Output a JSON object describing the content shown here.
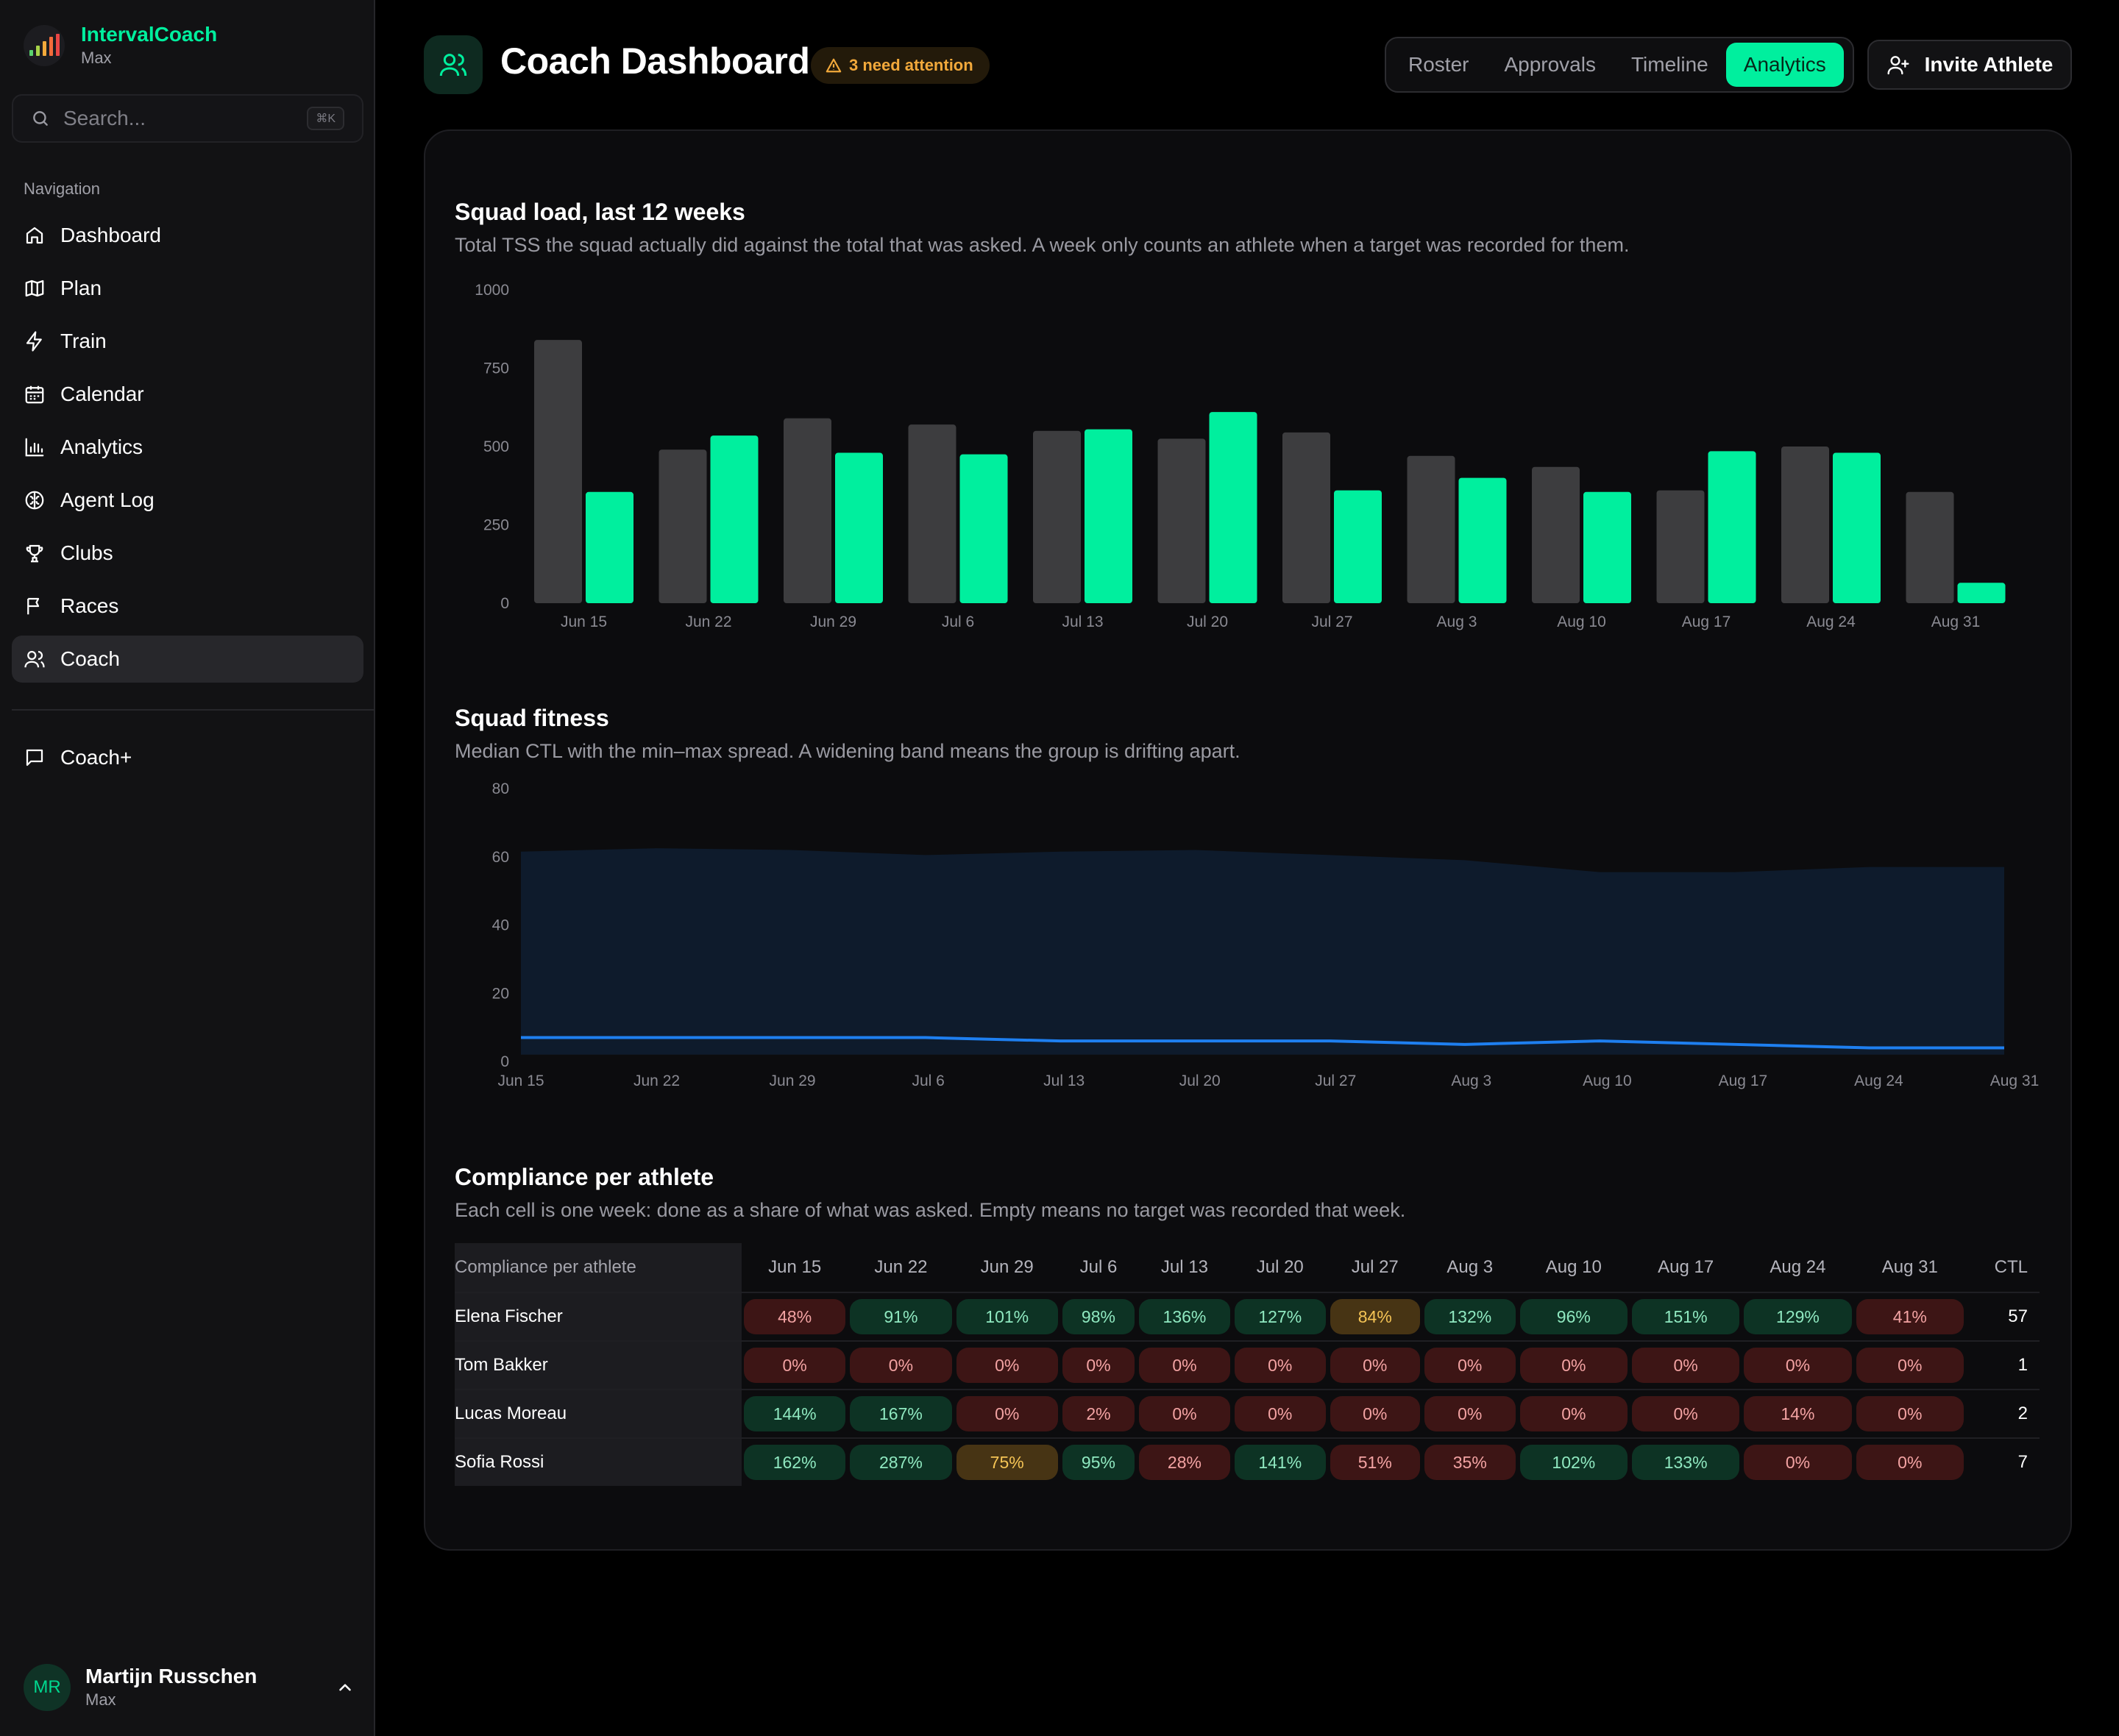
{
  "brand": {
    "name": "IntervalCoach",
    "sub": "Max"
  },
  "search": {
    "placeholder": "Search...",
    "shortcut": "⌘K"
  },
  "nav": {
    "label": "Navigation",
    "items": [
      {
        "label": "Dashboard",
        "icon": "home-icon"
      },
      {
        "label": "Plan",
        "icon": "map-icon"
      },
      {
        "label": "Train",
        "icon": "bolt-icon"
      },
      {
        "label": "Calendar",
        "icon": "calendar-icon"
      },
      {
        "label": "Analytics",
        "icon": "bar-chart-icon"
      },
      {
        "label": "Agent Log",
        "icon": "brain-icon"
      },
      {
        "label": "Clubs",
        "icon": "trophy-icon"
      },
      {
        "label": "Races",
        "icon": "flag-icon"
      },
      {
        "label": "Coach",
        "icon": "users-icon",
        "active": true
      }
    ],
    "extra": {
      "label": "Coach+",
      "icon": "message-icon"
    }
  },
  "user": {
    "initials": "MR",
    "name": "Martijn Russchen",
    "sub": "Max"
  },
  "header": {
    "title": "Coach Dashboard",
    "attention": "3 need attention",
    "tabs": [
      "Roster",
      "Approvals",
      "Timeline",
      "Analytics"
    ],
    "active_tab": "Analytics",
    "invite_label": "Invite Athlete"
  },
  "colors": {
    "accent": "#00ef9e",
    "asked": "#3d3d3f",
    "median": "#1e7ff0",
    "band": "#0e1b2c"
  },
  "load": {
    "title": "Squad load, last 12 weeks",
    "description": "Total TSS the squad actually did against the total that was asked. A week only counts an athlete when a target was recorded for them."
  },
  "fitness": {
    "title": "Squad fitness",
    "description": "Median CTL with the min–max spread. A widening band means the group is drifting apart."
  },
  "compliance": {
    "title": "Compliance per athlete",
    "description": "Each cell is one week: done as a share of what was asked. Empty means no target was recorded that week.",
    "header_label": "Compliance per athlete",
    "ctl_label": "CTL",
    "weeks": [
      "Jun 15",
      "Jun 22",
      "Jun 29",
      "Jul 6",
      "Jul 13",
      "Jul 20",
      "Jul 27",
      "Aug 3",
      "Aug 10",
      "Aug 17",
      "Aug 24",
      "Aug 31"
    ],
    "rows": [
      {
        "name": "Elena Fischer",
        "values": [
          "48%",
          "91%",
          "101%",
          "98%",
          "136%",
          "127%",
          "84%",
          "132%",
          "96%",
          "151%",
          "129%",
          "41%"
        ],
        "status": [
          "r",
          "g",
          "g",
          "g",
          "g",
          "g",
          "a",
          "g",
          "g",
          "g",
          "g",
          "r"
        ],
        "ctl": "57"
      },
      {
        "name": "Tom Bakker",
        "values": [
          "0%",
          "0%",
          "0%",
          "0%",
          "0%",
          "0%",
          "0%",
          "0%",
          "0%",
          "0%",
          "0%",
          "0%"
        ],
        "status": [
          "r",
          "r",
          "r",
          "r",
          "r",
          "r",
          "r",
          "r",
          "r",
          "r",
          "r",
          "r"
        ],
        "ctl": "1"
      },
      {
        "name": "Lucas Moreau",
        "values": [
          "144%",
          "167%",
          "0%",
          "2%",
          "0%",
          "0%",
          "0%",
          "0%",
          "0%",
          "0%",
          "14%",
          "0%"
        ],
        "status": [
          "g",
          "g",
          "r",
          "r",
          "r",
          "r",
          "r",
          "r",
          "r",
          "r",
          "r",
          "r"
        ],
        "ctl": "2"
      },
      {
        "name": "Sofia Rossi",
        "values": [
          "162%",
          "287%",
          "75%",
          "95%",
          "28%",
          "141%",
          "51%",
          "35%",
          "102%",
          "133%",
          "0%",
          "0%"
        ],
        "status": [
          "g",
          "g",
          "a",
          "g",
          "r",
          "g",
          "r",
          "r",
          "g",
          "g",
          "r",
          "r"
        ],
        "ctl": "7"
      }
    ]
  },
  "chart_data": [
    {
      "type": "bar",
      "title": "Squad load, last 12 weeks",
      "categories": [
        "Jun 15",
        "Jun 22",
        "Jun 29",
        "Jul 6",
        "Jul 13",
        "Jul 20",
        "Jul 27",
        "Aug 3",
        "Aug 10",
        "Aug 17",
        "Aug 24",
        "Aug 31"
      ],
      "series": [
        {
          "values": [
            840,
            490,
            590,
            570,
            550,
            525,
            545,
            470,
            435,
            360,
            500,
            355
          ]
        },
        {
          "values": [
            355,
            535,
            480,
            475,
            555,
            610,
            360,
            400,
            355,
            485,
            480,
            65
          ]
        }
      ],
      "yticks": [
        0,
        250,
        500,
        750,
        1000
      ],
      "ylim": [
        0,
        1000
      ],
      "grid": false
    },
    {
      "type": "area",
      "title": "Squad fitness",
      "x": [
        "Jun 15",
        "Jun 22",
        "Jun 29",
        "Jul 6",
        "Jul 13",
        "Jul 20",
        "Jul 27",
        "Aug 3",
        "Aug 10",
        "Aug 17",
        "Aug 24",
        "Aug 31"
      ],
      "band_max": [
        61.5,
        62.5,
        62,
        60.5,
        61.5,
        62,
        60.5,
        59,
        55.5,
        55.5,
        57,
        57
      ],
      "band_min": [
        2,
        2,
        2,
        2,
        2,
        2,
        2,
        2,
        2,
        2,
        2,
        2
      ],
      "median": [
        7,
        7,
        7,
        7,
        6,
        6,
        6,
        5,
        6,
        5,
        4,
        4
      ],
      "yticks": [
        0,
        20,
        40,
        60,
        80
      ],
      "ylim": [
        0,
        80
      ],
      "grid": false
    }
  ]
}
